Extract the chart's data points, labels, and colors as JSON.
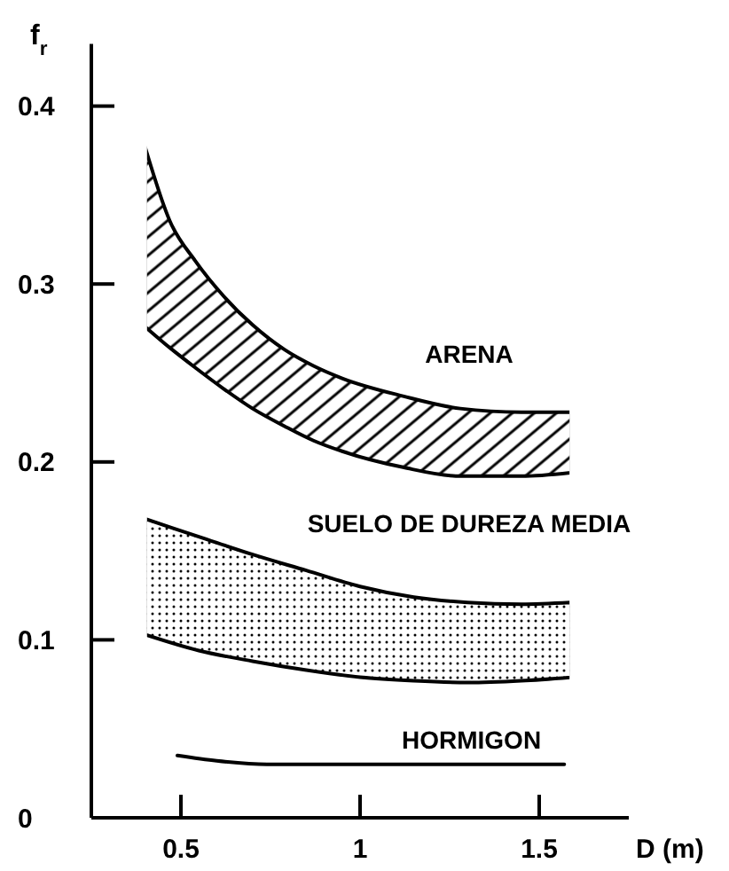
{
  "chart_data": {
    "type": "area",
    "xlabel": "D (m)",
    "ylabel": "f$_{r}$",
    "xlim": [
      0.25,
      1.75
    ],
    "ylim": [
      0,
      0.435
    ],
    "xticks": [
      0.5,
      1,
      1.5
    ],
    "yticks": [
      0,
      0.1,
      0.2,
      0.3,
      0.4
    ],
    "series": [
      {
        "name": "ARENA",
        "color": "#000000",
        "x": [
          0.4,
          0.47,
          0.54,
          0.62,
          0.7,
          0.79,
          0.87,
          0.95,
          1.12,
          1.28,
          1.45,
          1.59
        ],
        "values": [
          null,
          null,
          null,
          null,
          null,
          null,
          null,
          null,
          null,
          null,
          null,
          null
        ],
        "upper": [
          0.377,
          0.335,
          0.313,
          0.293,
          0.277,
          0.263,
          0.254,
          0.247,
          0.237,
          0.23,
          0.228,
          0.228
        ],
        "lower": [
          0.276,
          0.264,
          0.253,
          0.241,
          0.23,
          0.22,
          0.212,
          0.206,
          0.197,
          0.192,
          0.192,
          0.194
        ]
      },
      {
        "name": "SUELO DE DUREZA MEDIA",
        "color": "#000000",
        "x": [
          0.4,
          0.55,
          0.7,
          0.85,
          1.0,
          1.15,
          1.3,
          1.45,
          1.59
        ],
        "values": [
          null,
          null,
          null,
          null,
          null,
          null,
          null,
          null,
          null
        ],
        "upper": [
          0.168,
          0.158,
          0.148,
          0.139,
          0.13,
          0.124,
          0.121,
          0.12,
          0.121
        ],
        "lower": [
          0.103,
          0.094,
          0.088,
          0.083,
          0.079,
          0.077,
          0.076,
          0.077,
          0.079
        ]
      },
      {
        "name": "HORMIGON",
        "type": "line",
        "color": "#000000",
        "x": [
          0.49,
          0.6,
          0.74,
          1.0,
          1.3,
          1.57
        ],
        "values": [
          0.035,
          0.032,
          0.03,
          0.03,
          0.03,
          0.03
        ]
      }
    ]
  }
}
